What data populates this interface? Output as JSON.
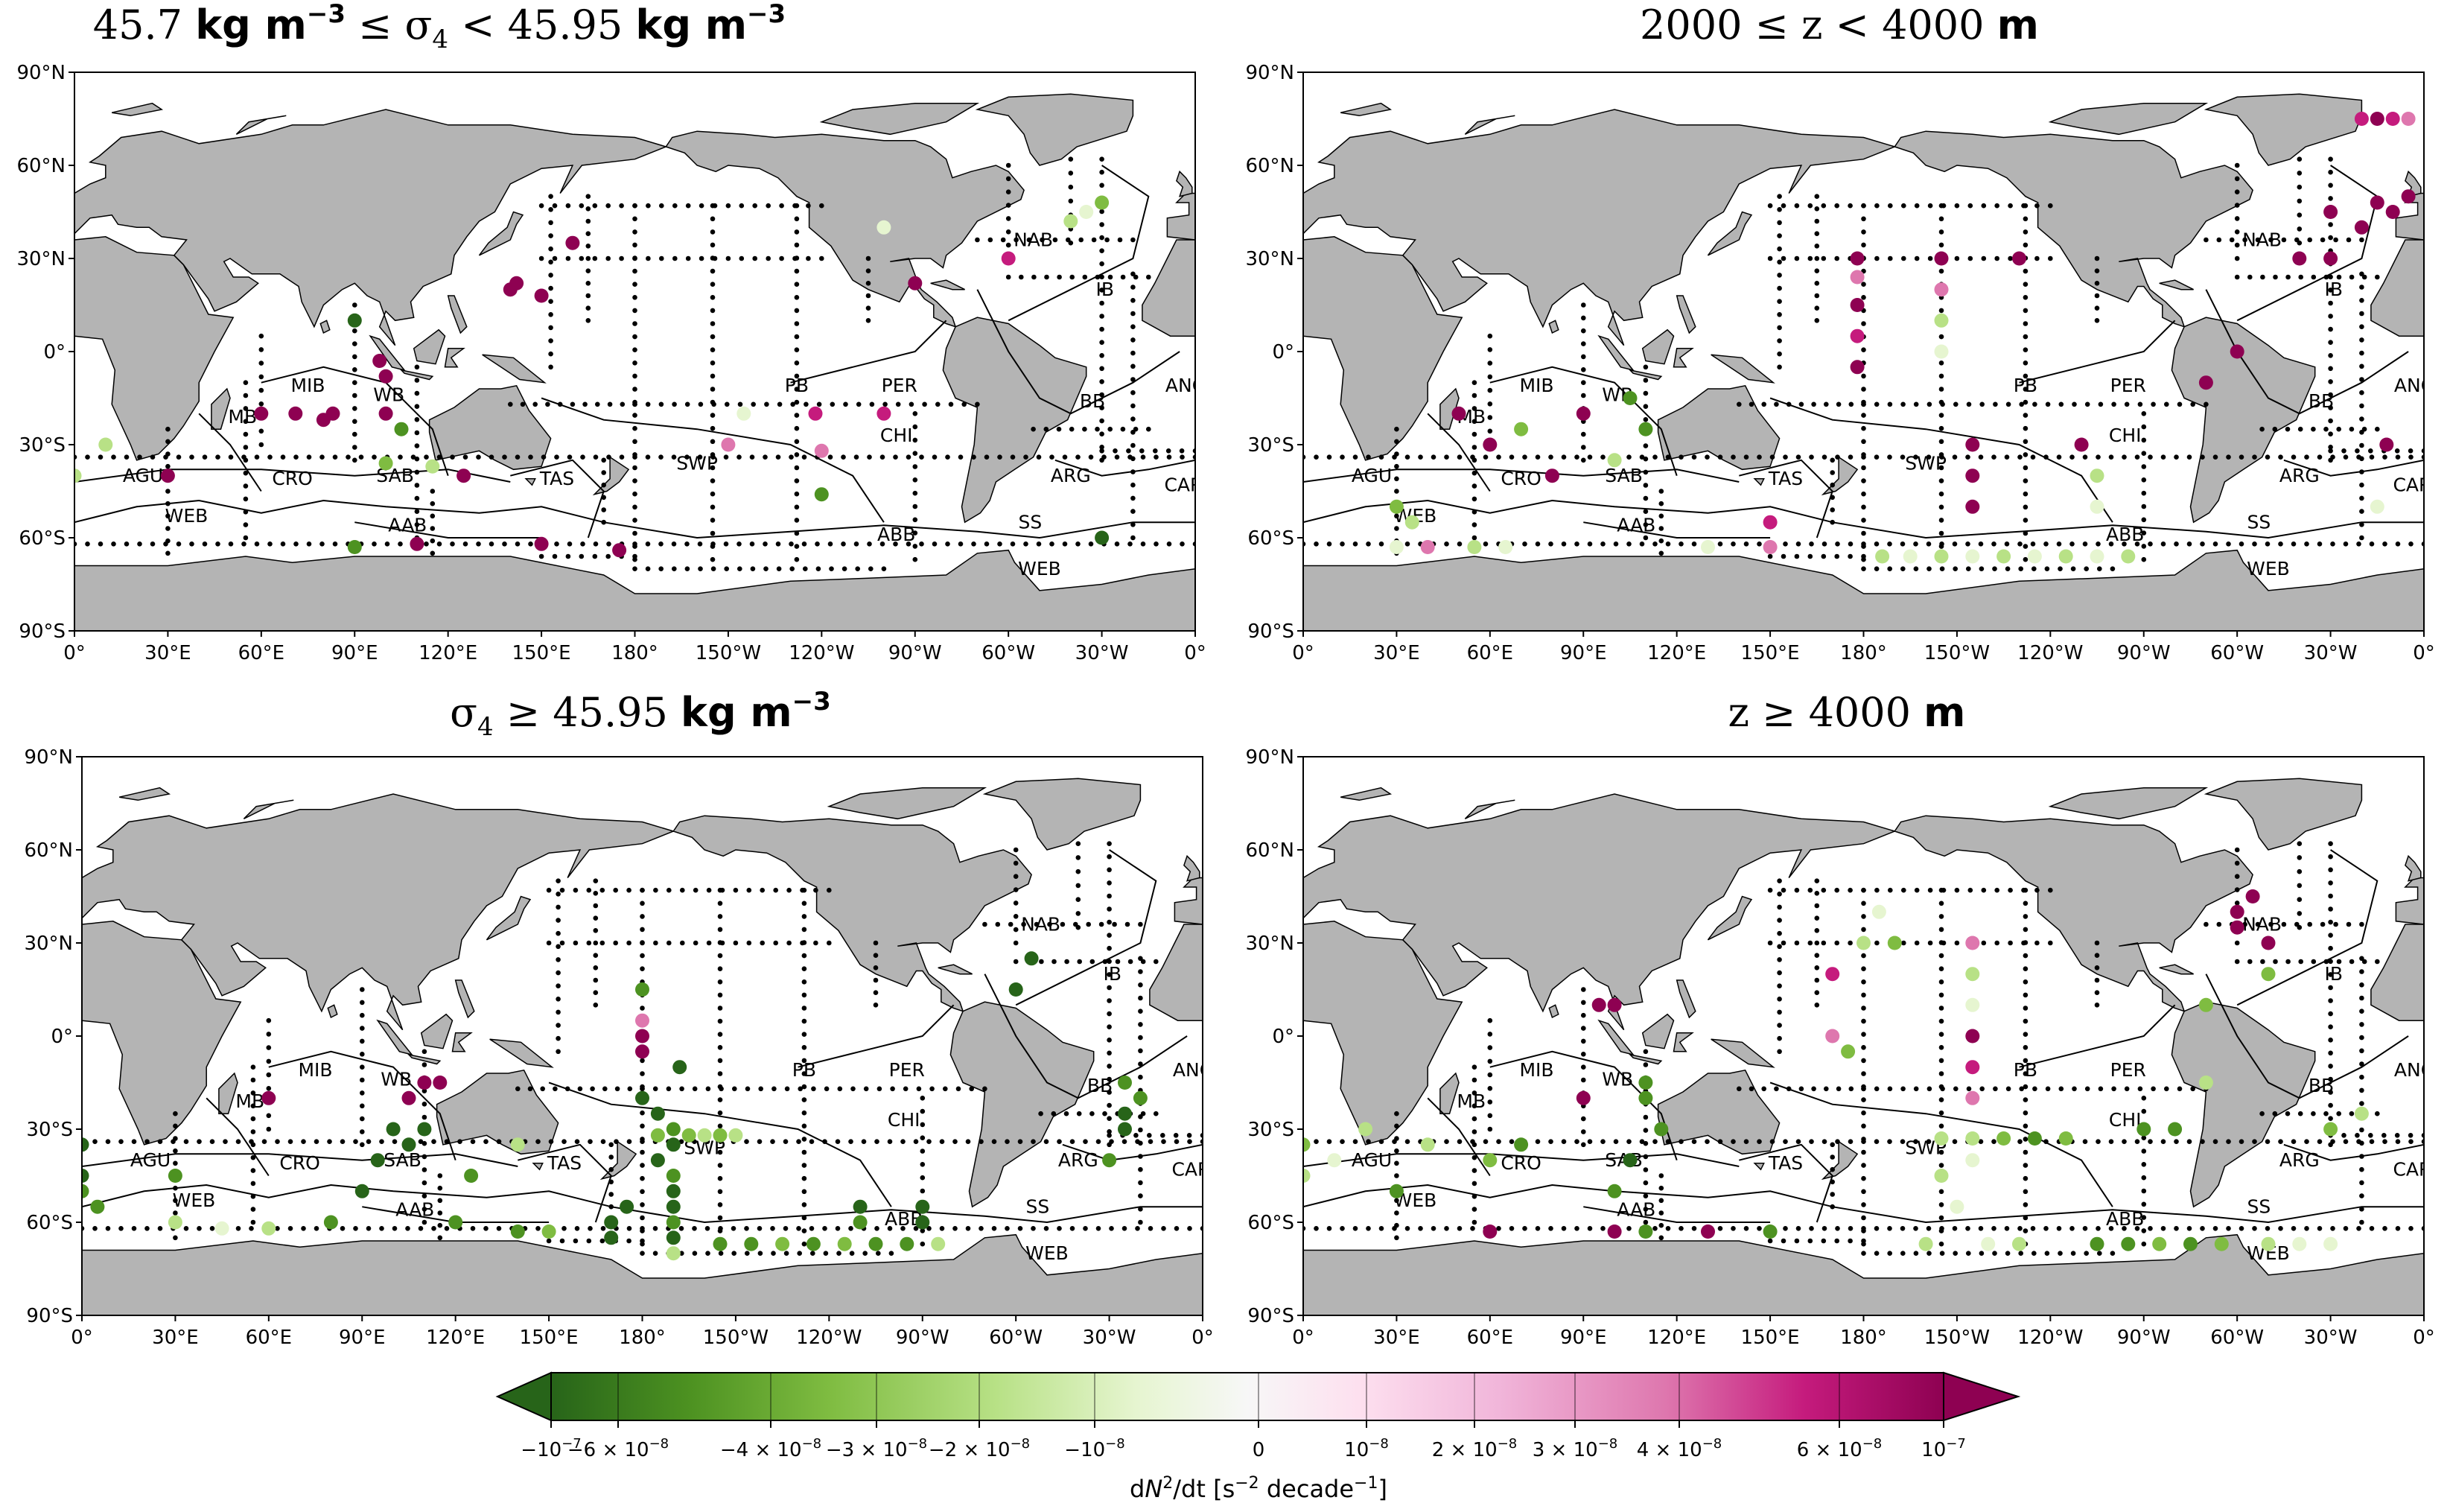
{
  "figure": {
    "colors": {
      "land": "#b4b4b4",
      "ocean": "#ffffff",
      "section_point": "#000000"
    },
    "cmap": [
      "#276419",
      "#4d9221",
      "#7fbc41",
      "#b8e186",
      "#e6f5d0",
      "#f7f7f7",
      "#fde0ef",
      "#f1b6da",
      "#de77ae",
      "#c51b7d",
      "#8e0152"
    ]
  },
  "panels": [
    {
      "id": "upper-left",
      "title_parts": [
        "45.7 ",
        "kg m",
        "−3",
        " ≤ σ",
        "4",
        " < 45.95 ",
        "kg m",
        "−3"
      ]
    },
    {
      "id": "upper-right",
      "title_parts": [
        "2000 ≤ z < 4000 ",
        "m"
      ]
    },
    {
      "id": "lower-left",
      "title_parts": [
        "σ",
        "4",
        " ≥ 45.95 ",
        "kg m",
        "−3"
      ]
    },
    {
      "id": "lower-right",
      "title_parts": [
        "z ≥ 4000 ",
        "m"
      ]
    }
  ],
  "axes": {
    "y_ticks": [
      "90°N",
      "60°N",
      "30°N",
      "0°",
      "30°S",
      "60°S",
      "90°S"
    ],
    "x_ticks": [
      "0°",
      "30°E",
      "60°E",
      "90°E",
      "120°E",
      "150°E",
      "180°",
      "150°W",
      "120°W",
      "90°W",
      "60°W",
      "30°W",
      "0°"
    ]
  },
  "basins": [
    "NAB",
    "IB",
    "ANG",
    "BB",
    "PER",
    "PB",
    "CHI",
    "ARG",
    "CAP",
    "SS",
    "ABB",
    "WEB",
    "AGU",
    "MB",
    "MIB",
    "WB",
    "CRO",
    "SAB",
    "AAB",
    "TAS",
    "SWP"
  ],
  "colorbar": {
    "tick_labels": [
      "−10−7",
      "−6 × 10−8",
      "−4 × 10−8",
      "−3 × 10−8",
      "−2 × 10−8",
      "−10−8",
      "0",
      "10−8",
      "2 × 10−8",
      "3 × 10−8",
      "4 × 10−8",
      "6 × 10−8",
      "10−7"
    ],
    "label": "dN2/dt [s−2 decade−1]"
  },
  "chart_data": [
    {
      "type": "scatter",
      "panel": "45.7 kg m−3 ≤ σ4 < 45.95 kg m−3",
      "xlim": [
        0,
        360
      ],
      "ylim": [
        -90,
        90
      ],
      "z_units": "s−2 decade−1",
      "points": [
        [
          330,
          -60,
          -9e-08
        ],
        [
          90,
          -63,
          -7e-08
        ],
        [
          150,
          -62,
          6e-08
        ],
        [
          175,
          -64,
          8e-08
        ],
        [
          110,
          -62,
          7e-08
        ],
        [
          100,
          -20,
          6e-08
        ],
        [
          83,
          -20,
          8e-08
        ],
        [
          71,
          -20,
          5e-08
        ],
        [
          80,
          -22,
          7e-08
        ],
        [
          60,
          -20,
          8e-08
        ],
        [
          105,
          -25,
          -6e-08
        ],
        [
          100,
          -8,
          6e-08
        ],
        [
          98,
          -3,
          5e-08
        ],
        [
          90,
          10,
          -9e-08
        ],
        [
          140,
          20,
          8e-08
        ],
        [
          142,
          22,
          6e-08
        ],
        [
          150,
          18,
          7e-08
        ],
        [
          160,
          35,
          4e-08
        ],
        [
          100,
          -36,
          -4e-08
        ],
        [
          115,
          -37,
          -3e-08
        ],
        [
          125,
          -40,
          4e-08
        ],
        [
          30,
          -40,
          5e-08
        ],
        [
          10,
          -30,
          -3e-08
        ],
        [
          0,
          -40,
          -3e-08
        ],
        [
          238,
          -20,
          3e-08
        ],
        [
          240,
          -46,
          -6e-08
        ],
        [
          240,
          -32,
          2e-08
        ],
        [
          260,
          -20,
          3e-08
        ],
        [
          210,
          -30,
          2e-08
        ],
        [
          215,
          -20,
          -2e-08
        ],
        [
          260,
          40,
          -2e-08
        ],
        [
          270,
          22,
          5e-08
        ],
        [
          300,
          30,
          3e-08
        ],
        [
          320,
          42,
          -3e-08
        ],
        [
          325,
          45,
          -2e-08
        ],
        [
          330,
          48,
          -4e-08
        ]
      ]
    },
    {
      "type": "scatter",
      "panel": "2000 ≤ z < 4000 m",
      "xlim": [
        0,
        360
      ],
      "ylim": [
        -90,
        90
      ],
      "points": [
        [
          186,
          -66,
          -3e-08
        ],
        [
          195,
          -66,
          -2e-08
        ],
        [
          205,
          -66,
          -3e-08
        ],
        [
          215,
          -66,
          -2e-08
        ],
        [
          225,
          -66,
          -3e-08
        ],
        [
          235,
          -66,
          -2e-08
        ],
        [
          245,
          -66,
          -3e-08
        ],
        [
          255,
          -66,
          -2e-08
        ],
        [
          265,
          -66,
          -3e-08
        ],
        [
          178,
          24,
          2e-08
        ],
        [
          178,
          15,
          5e-08
        ],
        [
          178,
          5,
          3e-08
        ],
        [
          178,
          -5,
          4e-08
        ],
        [
          178,
          30,
          6e-08
        ],
        [
          205,
          30,
          7e-08
        ],
        [
          205,
          20,
          2e-08
        ],
        [
          205,
          10,
          -3e-08
        ],
        [
          205,
          0,
          -2e-08
        ],
        [
          215,
          -30,
          6e-08
        ],
        [
          215,
          -40,
          7e-08
        ],
        [
          215,
          -50,
          8e-08
        ],
        [
          230,
          30,
          5e-08
        ],
        [
          250,
          -30,
          4e-08
        ],
        [
          255,
          -40,
          -3e-08
        ],
        [
          255,
          -50,
          -2e-08
        ],
        [
          50,
          -20,
          8e-08
        ],
        [
          60,
          -30,
          6e-08
        ],
        [
          70,
          -25,
          -4e-08
        ],
        [
          90,
          -20,
          6e-08
        ],
        [
          105,
          -15,
          -6e-08
        ],
        [
          110,
          -25,
          -5e-08
        ],
        [
          100,
          -35,
          -3e-08
        ],
        [
          80,
          -40,
          4e-08
        ],
        [
          30,
          -50,
          -4e-08
        ],
        [
          35,
          -55,
          -3e-08
        ],
        [
          30,
          -63,
          -2e-08
        ],
        [
          40,
          -63,
          2e-08
        ],
        [
          55,
          -63,
          -3e-08
        ],
        [
          65,
          -63,
          -2e-08
        ],
        [
          130,
          -63,
          -2e-08
        ],
        [
          150,
          -63,
          2e-08
        ],
        [
          150,
          -55,
          3e-08
        ],
        [
          330,
          45,
          6e-08
        ],
        [
          340,
          40,
          7e-08
        ],
        [
          345,
          48,
          5e-08
        ],
        [
          350,
          45,
          8e-08
        ],
        [
          355,
          50,
          4e-08
        ],
        [
          340,
          75,
          3e-08
        ],
        [
          345,
          75,
          4e-08
        ],
        [
          350,
          75,
          3e-08
        ],
        [
          355,
          75,
          2e-08
        ],
        [
          320,
          30,
          5e-08
        ],
        [
          330,
          30,
          6e-08
        ],
        [
          348,
          -30,
          6e-08
        ],
        [
          345,
          -50,
          -2e-08
        ],
        [
          300,
          0,
          5e-08
        ],
        [
          290,
          -10,
          6e-08
        ]
      ]
    },
    {
      "type": "scatter",
      "panel": "σ4 ≥ 45.95 kg m−3",
      "xlim": [
        0,
        360
      ],
      "ylim": [
        -90,
        90
      ],
      "points": [
        [
          180,
          -20,
          -9e-08
        ],
        [
          185,
          -25,
          -8e-08
        ],
        [
          190,
          -30,
          -7e-08
        ],
        [
          190,
          -35,
          -9e-08
        ],
        [
          185,
          -40,
          -8e-08
        ],
        [
          190,
          -45,
          -7e-08
        ],
        [
          190,
          -50,
          -9e-08
        ],
        [
          190,
          -55,
          -8e-08
        ],
        [
          190,
          -60,
          -7e-08
        ],
        [
          190,
          -65,
          -9e-08
        ],
        [
          190,
          -70,
          -3e-08
        ],
        [
          192,
          -10,
          -9e-08
        ],
        [
          180,
          15,
          -6e-08
        ],
        [
          180,
          5,
          2e-08
        ],
        [
          180,
          0,
          4e-08
        ],
        [
          180,
          -5,
          7e-08
        ],
        [
          185,
          -32,
          -4e-08
        ],
        [
          195,
          -32,
          -4e-08
        ],
        [
          200,
          -32,
          -3e-08
        ],
        [
          205,
          -32,
          -4e-08
        ],
        [
          210,
          -32,
          -3e-08
        ],
        [
          170,
          -60,
          -9e-08
        ],
        [
          170,
          -65,
          -9e-08
        ],
        [
          175,
          -55,
          -8e-08
        ],
        [
          205,
          -67,
          -6e-08
        ],
        [
          215,
          -67,
          -5e-08
        ],
        [
          225,
          -67,
          -4e-08
        ],
        [
          235,
          -67,
          -5e-08
        ],
        [
          245,
          -67,
          -4e-08
        ],
        [
          255,
          -67,
          -5e-08
        ],
        [
          265,
          -67,
          -6e-08
        ],
        [
          275,
          -67,
          -3e-08
        ],
        [
          270,
          -55,
          -8e-08
        ],
        [
          270,
          -60,
          -9e-08
        ],
        [
          250,
          -60,
          -7e-08
        ],
        [
          250,
          -55,
          -8e-08
        ],
        [
          335,
          -30,
          -9e-08
        ],
        [
          335,
          -25,
          -8e-08
        ],
        [
          335,
          -15,
          -6e-08
        ],
        [
          340,
          -20,
          -5e-08
        ],
        [
          330,
          -40,
          -7e-08
        ],
        [
          300,
          15,
          -9e-08
        ],
        [
          305,
          25,
          -9e-08
        ],
        [
          100,
          -30,
          -9e-08
        ],
        [
          105,
          -35,
          -8e-08
        ],
        [
          110,
          -30,
          -9e-08
        ],
        [
          105,
          -20,
          8e-08
        ],
        [
          110,
          -15,
          7e-08
        ],
        [
          115,
          -15,
          8e-08
        ],
        [
          95,
          -40,
          -8e-08
        ],
        [
          90,
          -50,
          -9e-08
        ],
        [
          80,
          -60,
          -7e-08
        ],
        [
          60,
          -62,
          -3e-08
        ],
        [
          45,
          -62,
          -2e-08
        ],
        [
          30,
          -60,
          -3e-08
        ],
        [
          0,
          -35,
          -9e-08
        ],
        [
          0,
          -45,
          -8e-08
        ],
        [
          0,
          -50,
          -7e-08
        ],
        [
          5,
          -55,
          -6e-08
        ],
        [
          30,
          -45,
          -7e-08
        ],
        [
          140,
          -63,
          -5e-08
        ],
        [
          150,
          -63,
          -4e-08
        ],
        [
          120,
          -60,
          -6e-08
        ],
        [
          125,
          -45,
          -6e-08
        ],
        [
          140,
          -35,
          -3e-08
        ],
        [
          60,
          -20,
          8e-08
        ]
      ]
    },
    {
      "type": "scatter",
      "panel": "z ≥ 4000 m",
      "xlim": [
        0,
        360
      ],
      "ylim": [
        -90,
        90
      ],
      "points": [
        [
          255,
          -67,
          -6e-08
        ],
        [
          265,
          -67,
          -5e-08
        ],
        [
          275,
          -67,
          -4e-08
        ],
        [
          285,
          -67,
          -5e-08
        ],
        [
          295,
          -67,
          -4e-08
        ],
        [
          310,
          -67,
          -3e-08
        ],
        [
          320,
          -67,
          -2e-08
        ],
        [
          330,
          -67,
          -2e-08
        ],
        [
          200,
          -67,
          -3e-08
        ],
        [
          220,
          -67,
          -2e-08
        ],
        [
          230,
          -67,
          -3e-08
        ],
        [
          210,
          -55,
          -2e-08
        ],
        [
          205,
          -45,
          -3e-08
        ],
        [
          215,
          -40,
          -2e-08
        ],
        [
          215,
          -33,
          -3e-08
        ],
        [
          225,
          -33,
          -4e-08
        ],
        [
          235,
          -33,
          -5e-08
        ],
        [
          245,
          -33,
          -4e-08
        ],
        [
          205,
          -33,
          -3e-08
        ],
        [
          215,
          -20,
          2e-08
        ],
        [
          215,
          -10,
          3e-08
        ],
        [
          215,
          0,
          4e-08
        ],
        [
          215,
          10,
          -2e-08
        ],
        [
          215,
          20,
          -3e-08
        ],
        [
          215,
          30,
          2e-08
        ],
        [
          180,
          30,
          -3e-08
        ],
        [
          185,
          40,
          -2e-08
        ],
        [
          190,
          30,
          -4e-08
        ],
        [
          170,
          20,
          3e-08
        ],
        [
          170,
          0,
          2e-08
        ],
        [
          175,
          -5,
          -4e-08
        ],
        [
          95,
          10,
          8e-08
        ],
        [
          100,
          10,
          7e-08
        ],
        [
          90,
          -20,
          6e-08
        ],
        [
          110,
          -15,
          -5e-08
        ],
        [
          110,
          -20,
          -6e-08
        ],
        [
          115,
          -30,
          -7e-08
        ],
        [
          105,
          -40,
          -8e-08
        ],
        [
          100,
          -50,
          -6e-08
        ],
        [
          70,
          -35,
          -5e-08
        ],
        [
          60,
          -40,
          -4e-08
        ],
        [
          40,
          -35,
          -3e-08
        ],
        [
          30,
          -50,
          -6e-08
        ],
        [
          20,
          -30,
          -3e-08
        ],
        [
          10,
          -40,
          -2e-08
        ],
        [
          0,
          -35,
          -4e-08
        ],
        [
          0,
          -45,
          -3e-08
        ],
        [
          60,
          -63,
          8e-08
        ],
        [
          100,
          -63,
          6e-08
        ],
        [
          110,
          -63,
          -5e-08
        ],
        [
          130,
          -63,
          5e-08
        ],
        [
          150,
          -63,
          -7e-08
        ],
        [
          300,
          40,
          7e-08
        ],
        [
          305,
          45,
          8e-08
        ],
        [
          300,
          35,
          4e-08
        ],
        [
          310,
          30,
          5e-08
        ],
        [
          310,
          20,
          -4e-08
        ],
        [
          290,
          10,
          -4e-08
        ],
        [
          290,
          -15,
          -3e-08
        ],
        [
          280,
          -30,
          -5e-08
        ],
        [
          270,
          -30,
          -6e-08
        ],
        [
          330,
          -30,
          -4e-08
        ],
        [
          340,
          -25,
          -3e-08
        ]
      ]
    }
  ]
}
